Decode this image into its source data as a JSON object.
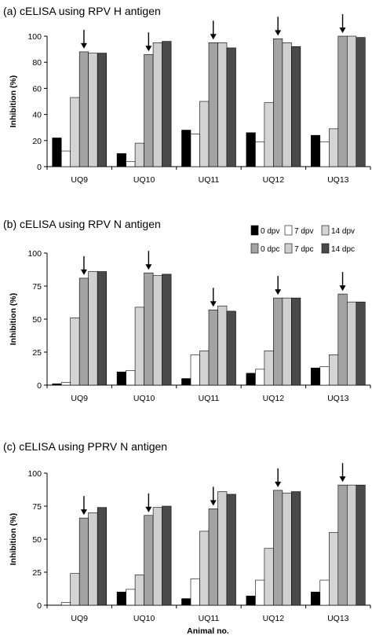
{
  "xlabel": "Animal no.",
  "ylabel": "Inhibition (%)",
  "legend": {
    "placement": "top-right of panel (b)",
    "items": [
      {
        "label": "0 dpv",
        "color": "#000000"
      },
      {
        "label": "7 dpv",
        "color": "#ffffff"
      },
      {
        "label": "14 dpv",
        "color": "#d4d4d4"
      },
      {
        "label": "0 dpc",
        "color": "#a3a3a3"
      },
      {
        "label": "7 dpc",
        "color": "#cfcfcf"
      },
      {
        "label": "14 dpc",
        "color": "#4a4a4a"
      }
    ]
  },
  "chart_data": [
    {
      "type": "bar",
      "title": "(a)  cELISA using RPV H antigen",
      "xlabel": "",
      "ylabel": "Inhibition (%)",
      "ylim": [
        0,
        100
      ],
      "yticks": [
        "0",
        "20",
        "40",
        "60",
        "80",
        "100"
      ],
      "ytick_values": [
        0,
        20,
        40,
        60,
        80,
        100
      ],
      "grid": false,
      "categories": [
        "UQ9",
        "UQ10",
        "UQ11",
        "UQ12",
        "UQ13"
      ],
      "series": [
        {
          "name": "0 dpv",
          "values": [
            22,
            10,
            28,
            26,
            24
          ]
        },
        {
          "name": "7 dpv",
          "values": [
            12,
            4,
            25,
            19,
            19
          ]
        },
        {
          "name": "14 dpv",
          "values": [
            53,
            18,
            50,
            49,
            29
          ]
        },
        {
          "name": "0 dpc",
          "values": [
            88,
            86,
            95,
            98,
            100
          ]
        },
        {
          "name": "7 dpc",
          "values": [
            87,
            95,
            95,
            95,
            100
          ]
        },
        {
          "name": "14 dpc",
          "values": [
            87,
            96,
            91,
            92,
            99
          ]
        }
      ],
      "annotations": "Arrows mark the 0 dpc bar of each animal"
    },
    {
      "type": "bar",
      "title": "(b) cELISA using RPV N antigen",
      "xlabel": "",
      "ylabel": "Inhibition (%)",
      "ylim": [
        0,
        100
      ],
      "yticks": [
        "0",
        "25",
        "50",
        "75",
        "100"
      ],
      "ytick_values": [
        0,
        25,
        50,
        75,
        100
      ],
      "grid": false,
      "categories": [
        "UQ9",
        "UQ10",
        "UQ11",
        "UQ12",
        "UQ13"
      ],
      "series": [
        {
          "name": "0 dpv",
          "values": [
            1,
            10,
            5,
            9,
            13
          ]
        },
        {
          "name": "7 dpv",
          "values": [
            2,
            11,
            23,
            12,
            14
          ]
        },
        {
          "name": "14 dpv",
          "values": [
            51,
            59,
            26,
            26,
            23
          ]
        },
        {
          "name": "0 dpc",
          "values": [
            81,
            85,
            57,
            66,
            69
          ]
        },
        {
          "name": "7 dpc",
          "values": [
            86,
            83,
            60,
            66,
            63
          ]
        },
        {
          "name": "14 dpc",
          "values": [
            86,
            84,
            56,
            66,
            63
          ]
        }
      ],
      "annotations": "Arrows mark the 0 dpc bar of each animal"
    },
    {
      "type": "bar",
      "title": "(c)  cELISA using PPRV N antigen",
      "xlabel": "Animal no.",
      "ylabel": "Inhibition (%)",
      "ylim": [
        0,
        100
      ],
      "yticks": [
        "0",
        "25",
        "50",
        "75",
        "100"
      ],
      "ytick_values": [
        0,
        25,
        50,
        75,
        100
      ],
      "grid": false,
      "categories": [
        "UQ9",
        "UQ10",
        "UQ11",
        "UQ12",
        "UQ13"
      ],
      "series": [
        {
          "name": "0 dpv",
          "values": [
            0,
            10,
            5,
            7,
            10
          ]
        },
        {
          "name": "7 dpv",
          "values": [
            2,
            12,
            20,
            19,
            19
          ]
        },
        {
          "name": "14 dpv",
          "values": [
            24,
            23,
            56,
            43,
            55
          ]
        },
        {
          "name": "0 dpc",
          "values": [
            66,
            68,
            73,
            87,
            91
          ]
        },
        {
          "name": "7 dpc",
          "values": [
            70,
            74,
            86,
            85,
            91
          ]
        },
        {
          "name": "14 dpc",
          "values": [
            74,
            75,
            84,
            86,
            91
          ]
        }
      ],
      "annotations": "Arrows mark the 0 dpc bar of each animal"
    }
  ]
}
